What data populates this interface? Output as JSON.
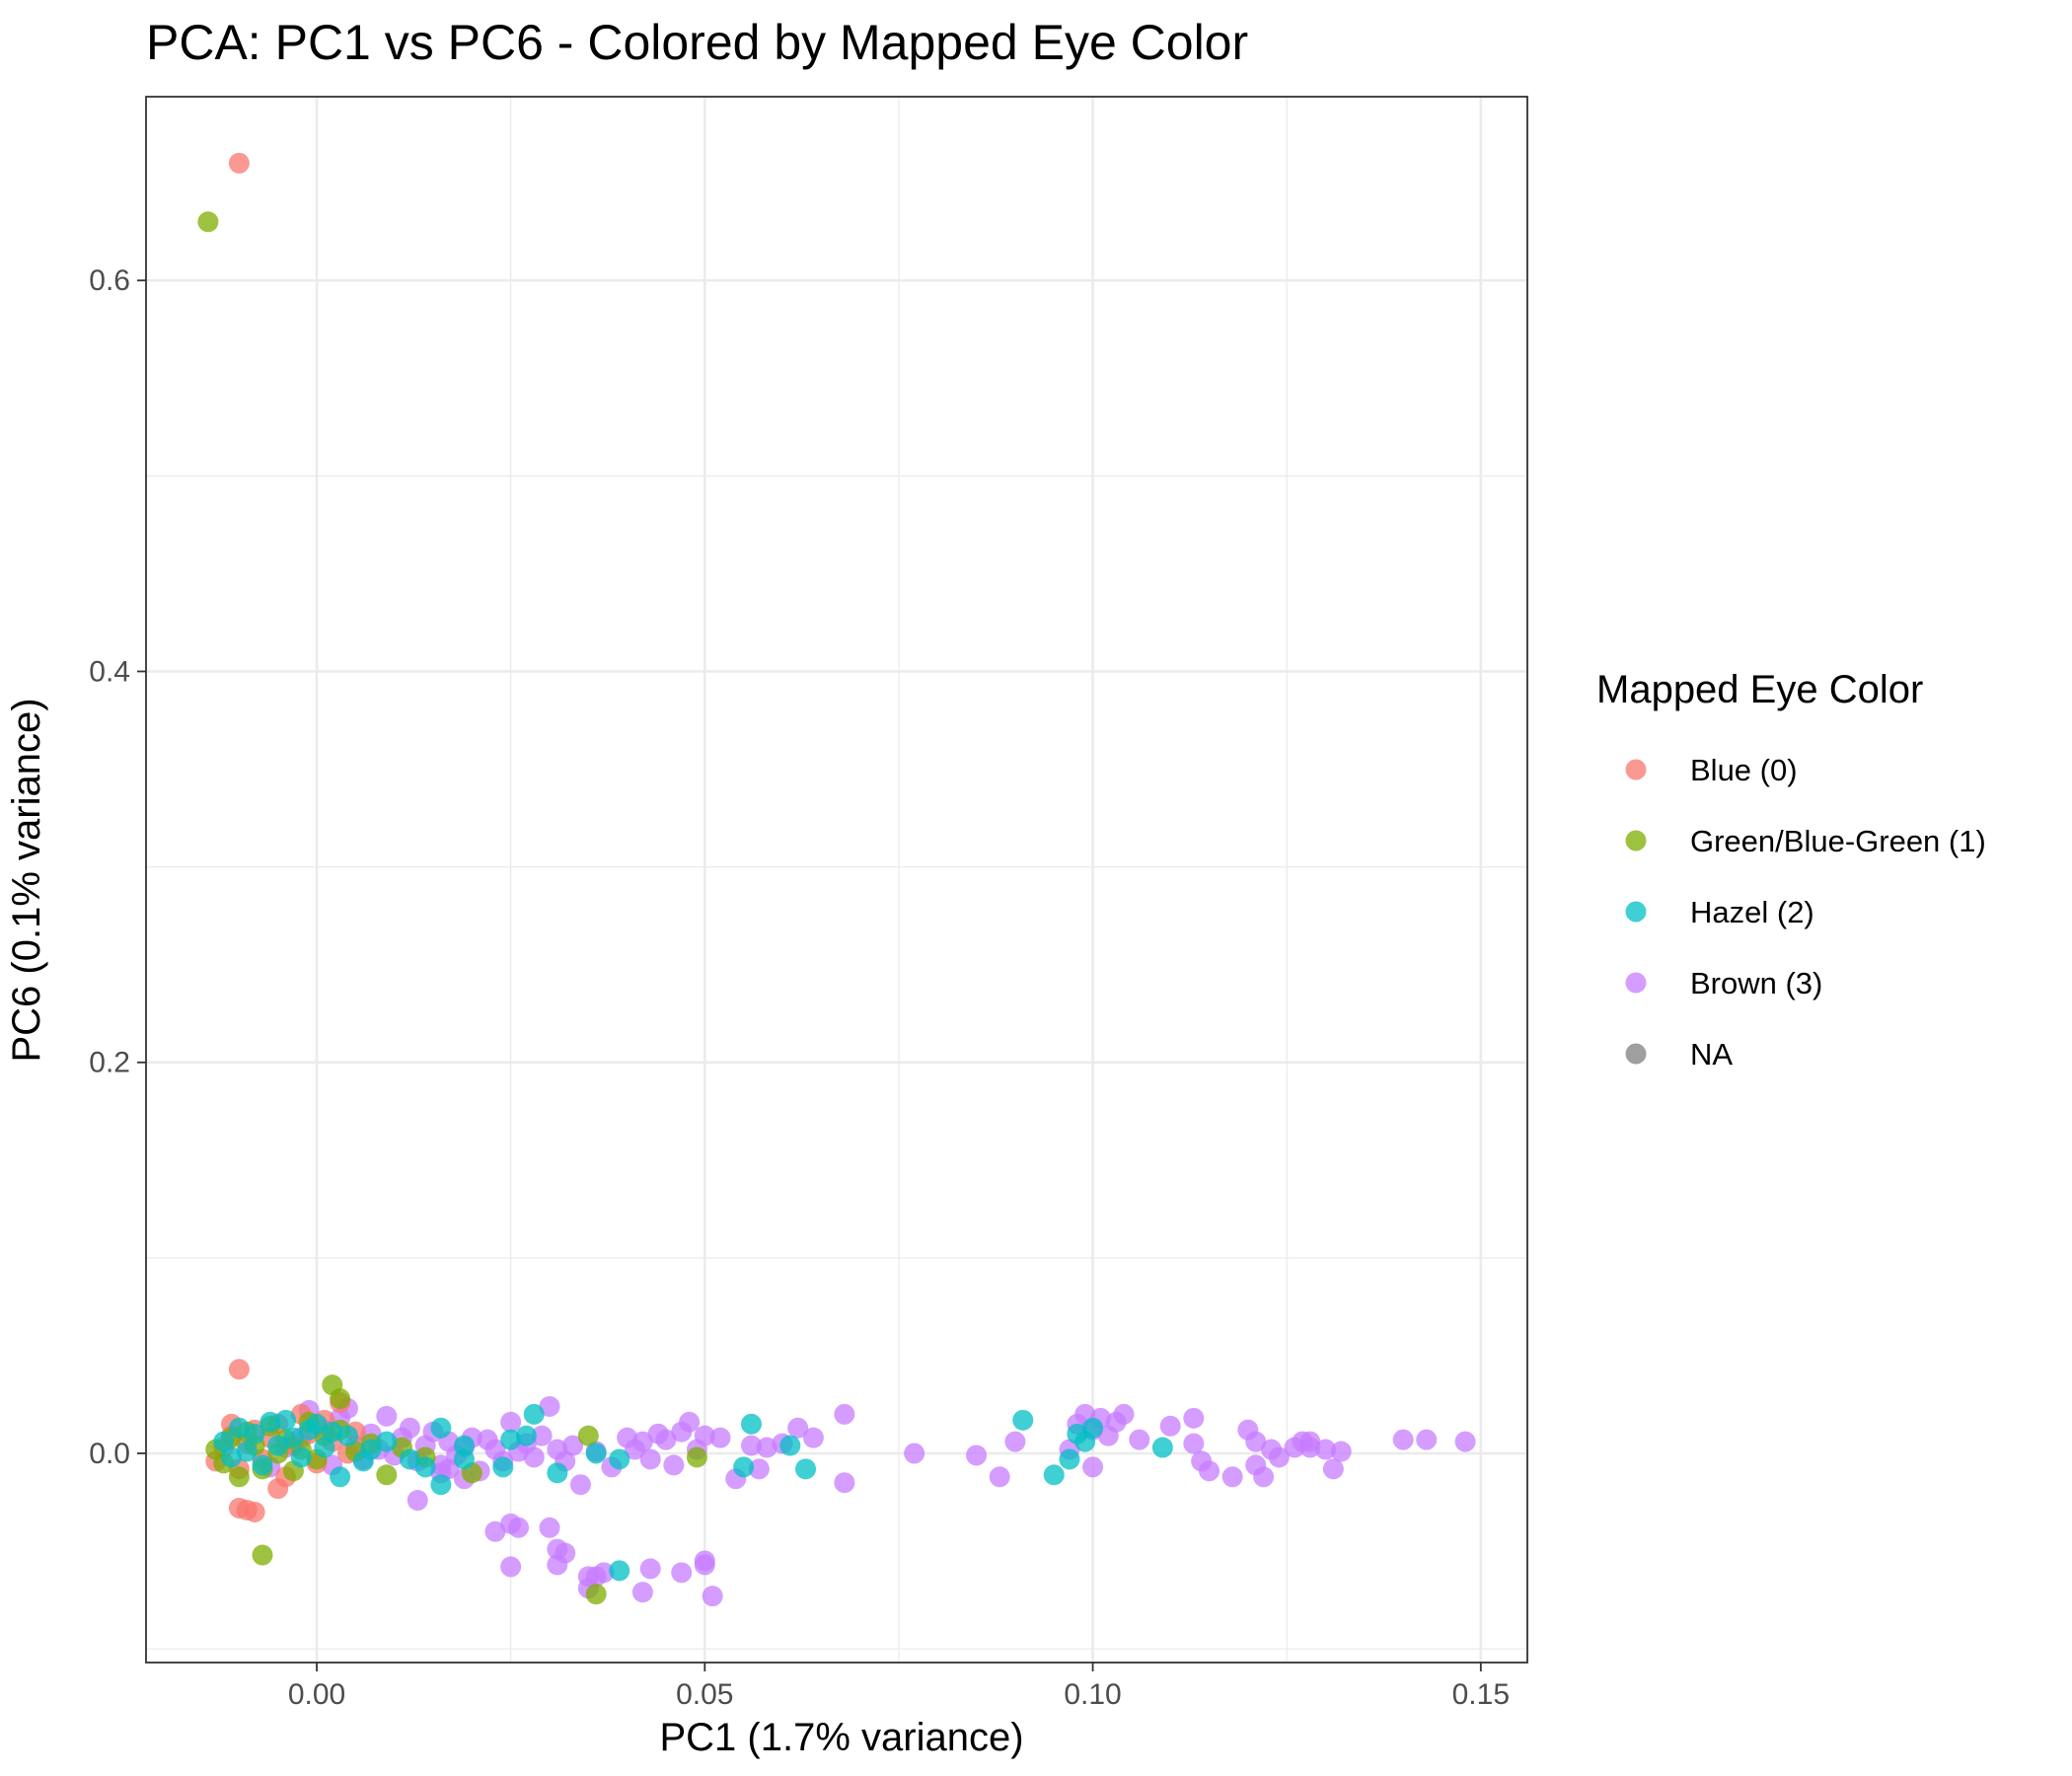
{
  "chart_data": {
    "type": "scatter",
    "title": "PCA: PC1 vs PC6 - Colored by Mapped Eye Color",
    "xlabel": "PC1 (1.7% variance)",
    "ylabel": "PC6 (0.1% variance)",
    "xlim": [
      -0.022,
      0.156
    ],
    "ylim": [
      -0.107,
      0.694
    ],
    "x_ticks": [
      0.0,
      0.05,
      0.1,
      0.15
    ],
    "x_tick_labels": [
      "0.00",
      "0.05",
      "0.10",
      "0.15"
    ],
    "y_ticks": [
      0.0,
      0.2,
      0.4,
      0.6
    ],
    "y_tick_labels": [
      "0.0",
      "0.2",
      "0.4",
      "0.6"
    ],
    "grid": true,
    "legend": {
      "title": "Mapped Eye Color",
      "placement": "right",
      "entries": [
        {
          "label": "Blue (0)",
          "color": "#F8766D"
        },
        {
          "label": "Green/Blue-Green (1)",
          "color": "#7CAE00"
        },
        {
          "label": "Hazel (2)",
          "color": "#00BFC4"
        },
        {
          "label": "Brown (3)",
          "color": "#C77CFF"
        },
        {
          "label": "NA",
          "color": "#7F7F7F"
        }
      ]
    },
    "series": [
      {
        "name": "Brown (3)",
        "color": "#C77CFF",
        "points": [
          [
            -0.006,
            -0.007
          ],
          [
            -0.004,
            0.003
          ],
          [
            -0.002,
            0.008
          ],
          [
            -0.001,
            0.022
          ],
          [
            0.001,
            0.012
          ],
          [
            0.003,
            0.018
          ],
          [
            0.004,
            0.023
          ],
          [
            0.002,
            -0.006
          ],
          [
            0.005,
            0.004
          ],
          [
            0.006,
            -0.003
          ],
          [
            0.007,
            0.01
          ],
          [
            0.008,
            0.002
          ],
          [
            0.009,
            0.019
          ],
          [
            0.01,
            -0.001
          ],
          [
            0.011,
            0.008
          ],
          [
            0.012,
            0.013
          ],
          [
            0.013,
            -0.004
          ],
          [
            0.014,
            0.004
          ],
          [
            0.015,
            0.011
          ],
          [
            0.016,
            -0.006
          ],
          [
            0.017,
            0.006
          ],
          [
            0.018,
            -0.001
          ],
          [
            0.019,
            0.003
          ],
          [
            0.02,
            0.008
          ],
          [
            0.021,
            -0.009
          ],
          [
            0.022,
            0.007
          ],
          [
            0.023,
            0.002
          ],
          [
            0.024,
            -0.004
          ],
          [
            0.025,
            0.016
          ],
          [
            0.026,
            0.001
          ],
          [
            0.027,
            0.005
          ],
          [
            0.028,
            -0.002
          ],
          [
            0.029,
            0.009
          ],
          [
            0.03,
            0.024
          ],
          [
            0.031,
            0.002
          ],
          [
            0.032,
            -0.004
          ],
          [
            0.033,
            0.004
          ],
          [
            0.034,
            -0.016
          ],
          [
            0.036,
            0.001
          ],
          [
            0.038,
            -0.007
          ],
          [
            0.04,
            0.008
          ],
          [
            0.041,
            0.002
          ],
          [
            0.042,
            0.006
          ],
          [
            0.043,
            -0.003
          ],
          [
            0.044,
            0.01
          ],
          [
            0.045,
            0.007
          ],
          [
            0.046,
            -0.006
          ],
          [
            0.047,
            0.011
          ],
          [
            0.048,
            0.016
          ],
          [
            0.049,
            0.002
          ],
          [
            0.05,
            0.009
          ],
          [
            0.052,
            0.008
          ],
          [
            0.054,
            -0.013
          ],
          [
            0.056,
            0.004
          ],
          [
            0.057,
            -0.008
          ],
          [
            0.058,
            0.003
          ],
          [
            0.06,
            0.005
          ],
          [
            0.062,
            0.013
          ],
          [
            0.064,
            0.008
          ],
          [
            0.068,
            0.02
          ],
          [
            0.068,
            -0.015
          ],
          [
            0.077,
            0.0
          ],
          [
            0.085,
            -0.001
          ],
          [
            0.088,
            -0.012
          ],
          [
            0.09,
            0.006
          ],
          [
            0.097,
            0.002
          ],
          [
            0.098,
            0.015
          ],
          [
            0.099,
            0.02
          ],
          [
            0.1,
            0.012
          ],
          [
            0.101,
            0.018
          ],
          [
            0.102,
            0.009
          ],
          [
            0.103,
            0.016
          ],
          [
            0.104,
            0.02
          ],
          [
            0.106,
            0.007
          ],
          [
            0.1,
            -0.007
          ],
          [
            0.11,
            0.014
          ],
          [
            0.113,
            0.018
          ],
          [
            0.113,
            0.005
          ],
          [
            0.114,
            -0.004
          ],
          [
            0.115,
            -0.009
          ],
          [
            0.118,
            -0.012
          ],
          [
            0.12,
            0.012
          ],
          [
            0.121,
            0.006
          ],
          [
            0.121,
            -0.006
          ],
          [
            0.122,
            -0.012
          ],
          [
            0.123,
            0.002
          ],
          [
            0.124,
            -0.002
          ],
          [
            0.126,
            0.003
          ],
          [
            0.127,
            0.006
          ],
          [
            0.128,
            0.006
          ],
          [
            0.128,
            0.003
          ],
          [
            0.13,
            0.002
          ],
          [
            0.131,
            -0.008
          ],
          [
            0.132,
            0.001
          ],
          [
            0.14,
            0.007
          ],
          [
            0.143,
            0.007
          ],
          [
            0.148,
            0.006
          ],
          [
            0.013,
            -0.024
          ],
          [
            0.019,
            -0.013
          ],
          [
            0.023,
            -0.04
          ],
          [
            0.025,
            -0.036
          ],
          [
            0.026,
            -0.038
          ],
          [
            0.03,
            -0.038
          ],
          [
            0.031,
            -0.049
          ],
          [
            0.032,
            -0.051
          ],
          [
            0.031,
            -0.057
          ],
          [
            0.025,
            -0.058
          ],
          [
            0.035,
            -0.063
          ],
          [
            0.037,
            -0.061
          ],
          [
            0.043,
            -0.059
          ],
          [
            0.047,
            -0.061
          ],
          [
            0.05,
            -0.057
          ],
          [
            0.05,
            -0.055
          ],
          [
            0.035,
            -0.069
          ],
          [
            0.042,
            -0.071
          ],
          [
            0.051,
            -0.073
          ],
          [
            0.036,
            -0.063
          ],
          [
            0.016,
            -0.01
          ],
          [
            0.017,
            -0.008
          ]
        ]
      },
      {
        "name": "Blue (0)",
        "color": "#F8766D",
        "points": [
          [
            -0.01,
            0.66
          ],
          [
            -0.01,
            0.043
          ],
          [
            -0.01,
            -0.028
          ],
          [
            -0.009,
            -0.029
          ],
          [
            -0.008,
            -0.03
          ],
          [
            -0.013,
            -0.004
          ],
          [
            -0.012,
            0.003
          ],
          [
            -0.011,
            0.009
          ],
          [
            -0.01,
            -0.008
          ],
          [
            -0.009,
            0.005
          ],
          [
            -0.008,
            0.012
          ],
          [
            -0.007,
            -0.003
          ],
          [
            -0.006,
            0.008
          ],
          [
            -0.005,
            0.015
          ],
          [
            -0.004,
            -0.012
          ],
          [
            -0.003,
            0.004
          ],
          [
            -0.002,
            0.02
          ],
          [
            -0.001,
            0.01
          ],
          [
            0.0,
            -0.005
          ],
          [
            0.001,
            0.017
          ],
          [
            0.002,
            0.006
          ],
          [
            0.003,
            0.026
          ],
          [
            0.004,
            0.0
          ],
          [
            0.005,
            0.011
          ],
          [
            -0.011,
            0.015
          ],
          [
            -0.005,
            -0.018
          ]
        ]
      },
      {
        "name": "Green/Blue-Green (1)",
        "color": "#7CAE00",
        "points": [
          [
            -0.014,
            0.63
          ],
          [
            -0.007,
            -0.052
          ],
          [
            0.002,
            0.035
          ],
          [
            0.003,
            0.028
          ],
          [
            0.036,
            -0.072
          ],
          [
            0.035,
            0.009
          ],
          [
            0.049,
            -0.002
          ],
          [
            0.02,
            -0.01
          ],
          [
            0.009,
            -0.011
          ],
          [
            -0.013,
            0.002
          ],
          [
            -0.012,
            -0.005
          ],
          [
            -0.011,
            0.008
          ],
          [
            -0.01,
            -0.012
          ],
          [
            -0.009,
            0.011
          ],
          [
            -0.008,
            0.004
          ],
          [
            -0.007,
            -0.008
          ],
          [
            -0.006,
            0.014
          ],
          [
            -0.005,
            0.0
          ],
          [
            -0.004,
            0.007
          ],
          [
            -0.003,
            -0.009
          ],
          [
            -0.002,
            0.002
          ],
          [
            -0.001,
            0.016
          ],
          [
            0.0,
            -0.003
          ],
          [
            0.001,
            0.009
          ],
          [
            0.003,
            0.012
          ],
          [
            0.005,
            0.001
          ],
          [
            0.007,
            0.005
          ],
          [
            0.011,
            0.003
          ],
          [
            0.014,
            -0.002
          ]
        ]
      },
      {
        "name": "Hazel (2)",
        "color": "#00BFC4",
        "points": [
          [
            -0.012,
            0.006
          ],
          [
            -0.011,
            -0.002
          ],
          [
            -0.01,
            0.013
          ],
          [
            -0.009,
            0.001
          ],
          [
            -0.008,
            0.01
          ],
          [
            -0.007,
            -0.006
          ],
          [
            -0.006,
            0.016
          ],
          [
            -0.005,
            0.004
          ],
          [
            -0.004,
            0.017
          ],
          [
            -0.003,
            0.008
          ],
          [
            -0.002,
            -0.002
          ],
          [
            -0.001,
            0.012
          ],
          [
            0.0,
            0.015
          ],
          [
            0.001,
            0.003
          ],
          [
            0.002,
            0.011
          ],
          [
            0.003,
            -0.012
          ],
          [
            0.004,
            0.009
          ],
          [
            0.006,
            -0.004
          ],
          [
            0.007,
            0.002
          ],
          [
            0.009,
            0.006
          ],
          [
            0.012,
            -0.003
          ],
          [
            0.014,
            -0.007
          ],
          [
            0.016,
            0.013
          ],
          [
            0.016,
            -0.016
          ],
          [
            0.019,
            0.004
          ],
          [
            0.019,
            -0.003
          ],
          [
            0.024,
            -0.007
          ],
          [
            0.025,
            0.007
          ],
          [
            0.027,
            0.009
          ],
          [
            0.028,
            0.02
          ],
          [
            0.031,
            -0.01
          ],
          [
            0.036,
            0.0
          ],
          [
            0.039,
            -0.003
          ],
          [
            0.039,
            -0.06
          ],
          [
            0.055,
            -0.007
          ],
          [
            0.056,
            0.015
          ],
          [
            0.061,
            0.004
          ],
          [
            0.063,
            -0.008
          ],
          [
            0.091,
            0.017
          ],
          [
            0.095,
            -0.011
          ],
          [
            0.097,
            -0.003
          ],
          [
            0.098,
            0.01
          ],
          [
            0.099,
            0.006
          ],
          [
            0.1,
            0.013
          ],
          [
            0.109,
            0.003
          ]
        ]
      }
    ]
  }
}
